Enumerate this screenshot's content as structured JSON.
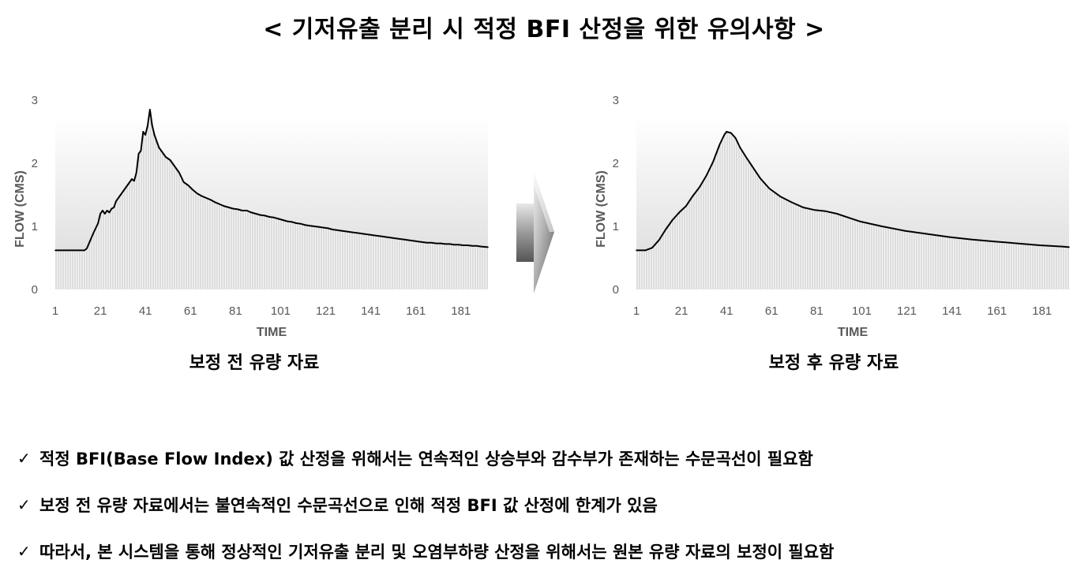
{
  "title": "< 기저유출 분리 시 적정 BFI 산정을 위한 유의사항 >",
  "captions": {
    "left": "보정 전 유량 자료",
    "right": "보정 후 유량 자료"
  },
  "notes": [
    "적정 BFI(Base Flow Index) 값 산정을 위해서는 연속적인 상승부와 감수부가 존재하는 수문곡선이 필요함",
    "보정 전 유량 자료에서는 불연속적인 수문곡선으로 인해 적정 BFI 값 산정에 한계가 있음",
    "따라서, 본 시스템을 통해 정상적인 기저유출 분리 및 오염부하량 산정을 위해서는 원본 유량 자료의 보정이 필요함"
  ],
  "check_mark": "✓",
  "colors": {
    "line": "#000000",
    "axis_text": "#595959",
    "arrow": "#9a9a9a"
  },
  "chart_data": [
    {
      "type": "area",
      "xlabel": "TIME",
      "ylabel": "FLOW (CMS)",
      "ylim": [
        0,
        3
      ],
      "yticks": [
        "0",
        "1",
        "2",
        "3"
      ],
      "xticks": [
        "1",
        "21",
        "41",
        "61",
        "81",
        "101",
        "121",
        "141",
        "161",
        "181"
      ],
      "xlim": [
        1,
        193
      ],
      "x": [
        1,
        14,
        15,
        18,
        20,
        21,
        22,
        23,
        24,
        25,
        26,
        27,
        28,
        29,
        30,
        31,
        32,
        33,
        34,
        35,
        36,
        37,
        38,
        39,
        40,
        41,
        42,
        43,
        44,
        45,
        46,
        47,
        48,
        49,
        50,
        52,
        54,
        56,
        58,
        60,
        62,
        64,
        66,
        68,
        70,
        72,
        74,
        76,
        78,
        80,
        82,
        84,
        86,
        88,
        90,
        92,
        94,
        96,
        98,
        100,
        102,
        104,
        106,
        108,
        110,
        112,
        114,
        116,
        118,
        120,
        122,
        124,
        126,
        128,
        130,
        132,
        134,
        136,
        138,
        140,
        142,
        144,
        146,
        148,
        150,
        152,
        154,
        156,
        158,
        160,
        162,
        164,
        166,
        168,
        170,
        172,
        174,
        176,
        178,
        180,
        182,
        184,
        186,
        188,
        190,
        193
      ],
      "values": [
        0.62,
        0.62,
        0.65,
        0.9,
        1.05,
        1.2,
        1.25,
        1.2,
        1.25,
        1.22,
        1.28,
        1.3,
        1.4,
        1.45,
        1.5,
        1.55,
        1.6,
        1.65,
        1.7,
        1.75,
        1.72,
        1.85,
        2.15,
        2.2,
        2.5,
        2.45,
        2.6,
        2.85,
        2.6,
        2.45,
        2.35,
        2.25,
        2.2,
        2.15,
        2.1,
        2.05,
        1.95,
        1.85,
        1.7,
        1.65,
        1.58,
        1.52,
        1.48,
        1.45,
        1.42,
        1.38,
        1.35,
        1.32,
        1.3,
        1.28,
        1.27,
        1.25,
        1.25,
        1.22,
        1.2,
        1.18,
        1.17,
        1.15,
        1.14,
        1.12,
        1.1,
        1.08,
        1.07,
        1.05,
        1.04,
        1.02,
        1.01,
        1.0,
        0.99,
        0.98,
        0.97,
        0.95,
        0.94,
        0.93,
        0.92,
        0.91,
        0.9,
        0.89,
        0.88,
        0.87,
        0.86,
        0.85,
        0.84,
        0.83,
        0.82,
        0.81,
        0.8,
        0.79,
        0.78,
        0.77,
        0.76,
        0.75,
        0.74,
        0.74,
        0.73,
        0.73,
        0.72,
        0.72,
        0.71,
        0.71,
        0.7,
        0.7,
        0.69,
        0.69,
        0.68,
        0.67
      ]
    },
    {
      "type": "area",
      "xlabel": "TIME",
      "ylabel": "FLOW (CMS)",
      "ylim": [
        0,
        3
      ],
      "yticks": [
        "0",
        "1",
        "2",
        "3"
      ],
      "xticks": [
        "1",
        "21",
        "41",
        "61",
        "81",
        "101",
        "121",
        "141",
        "161",
        "181"
      ],
      "xlim": [
        1,
        193
      ],
      "x": [
        1,
        5,
        8,
        11,
        14,
        17,
        20,
        23,
        26,
        29,
        32,
        35,
        38,
        40,
        41,
        43,
        45,
        47,
        50,
        53,
        56,
        60,
        65,
        70,
        75,
        80,
        85,
        90,
        95,
        100,
        110,
        120,
        130,
        140,
        150,
        160,
        170,
        180,
        190,
        193
      ],
      "values": [
        0.62,
        0.62,
        0.66,
        0.78,
        0.95,
        1.1,
        1.22,
        1.32,
        1.48,
        1.62,
        1.8,
        2.02,
        2.3,
        2.45,
        2.5,
        2.48,
        2.4,
        2.25,
        2.08,
        1.92,
        1.76,
        1.6,
        1.47,
        1.38,
        1.3,
        1.26,
        1.24,
        1.2,
        1.14,
        1.08,
        1.0,
        0.93,
        0.88,
        0.83,
        0.79,
        0.76,
        0.73,
        0.7,
        0.68,
        0.67
      ]
    }
  ]
}
